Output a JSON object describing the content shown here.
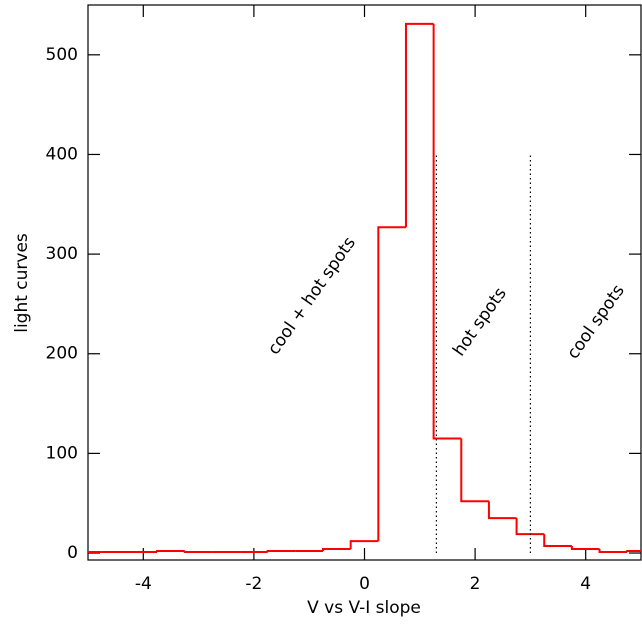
{
  "chart_data": {
    "type": "histogram",
    "x_label": "V vs V-I slope",
    "y_label": "light curves",
    "bins": [
      -5.25,
      -4.75,
      -4.25,
      -3.75,
      -3.25,
      -2.75,
      -2.25,
      -1.75,
      -1.25,
      -0.75,
      -0.25,
      0.25,
      0.75,
      1.25,
      1.75,
      2.25,
      2.75,
      3.25,
      3.75,
      4.25,
      4.75,
      5.25
    ],
    "values": [
      1,
      1,
      1,
      2,
      1,
      1,
      1,
      2,
      2,
      4,
      12,
      327,
      531,
      115,
      52,
      35,
      19,
      7,
      4,
      1,
      2
    ],
    "color": "#ff0000",
    "xlim": [
      -5,
      5
    ],
    "ylim": [
      -7,
      550
    ],
    "xticks": [
      -4,
      -2,
      0,
      2,
      4
    ],
    "yticks": [
      0,
      100,
      200,
      300,
      400,
      500
    ],
    "vlines": [
      {
        "x": 1.3,
        "ymax": 400
      },
      {
        "x": 3.0,
        "ymax": 400
      }
    ],
    "annotations": [
      "cool + hot spots",
      "hot spots",
      "cool spots"
    ]
  }
}
